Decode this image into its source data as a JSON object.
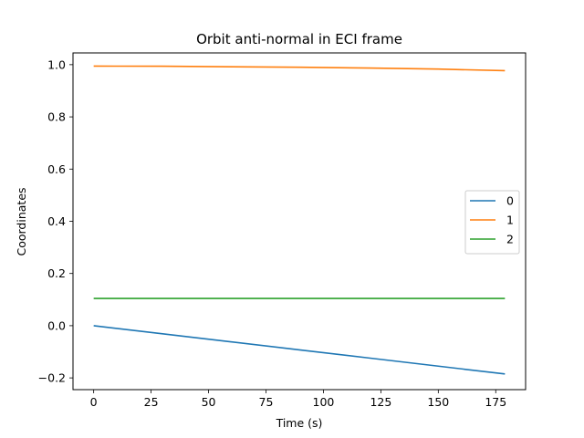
{
  "chart_data": {
    "type": "line",
    "title": "Orbit anti-normal in ECI frame",
    "xlabel": "Time (s)",
    "ylabel": "Coordinates",
    "xlim": [
      -9,
      188
    ],
    "ylim": [
      -0.245,
      1.045
    ],
    "xticks": [
      0,
      25,
      50,
      75,
      100,
      125,
      150,
      175
    ],
    "xtick_labels": [
      "0",
      "25",
      "50",
      "75",
      "100",
      "125",
      "150",
      "175"
    ],
    "yticks": [
      -0.2,
      0.0,
      0.2,
      0.4,
      0.6,
      0.8,
      1.0
    ],
    "ytick_labels": [
      "−0.2",
      "0.0",
      "0.2",
      "0.4",
      "0.6",
      "0.8",
      "1.0"
    ],
    "grid": false,
    "legend_position": "center-right",
    "x": [
      0,
      30,
      60,
      90,
      120,
      150,
      179
    ],
    "series": [
      {
        "name": "0",
        "color": "#1f77b4",
        "values": [
          0.0,
          -0.031,
          -0.062,
          -0.093,
          -0.124,
          -0.155,
          -0.185
        ]
      },
      {
        "name": "1",
        "color": "#ff7f0e",
        "values": [
          0.9945,
          0.994,
          0.992,
          0.99,
          0.987,
          0.983,
          0.977
        ]
      },
      {
        "name": "2",
        "color": "#2ca02c",
        "values": [
          0.1045,
          0.1045,
          0.1045,
          0.1045,
          0.1045,
          0.1045,
          0.1045
        ]
      }
    ]
  }
}
